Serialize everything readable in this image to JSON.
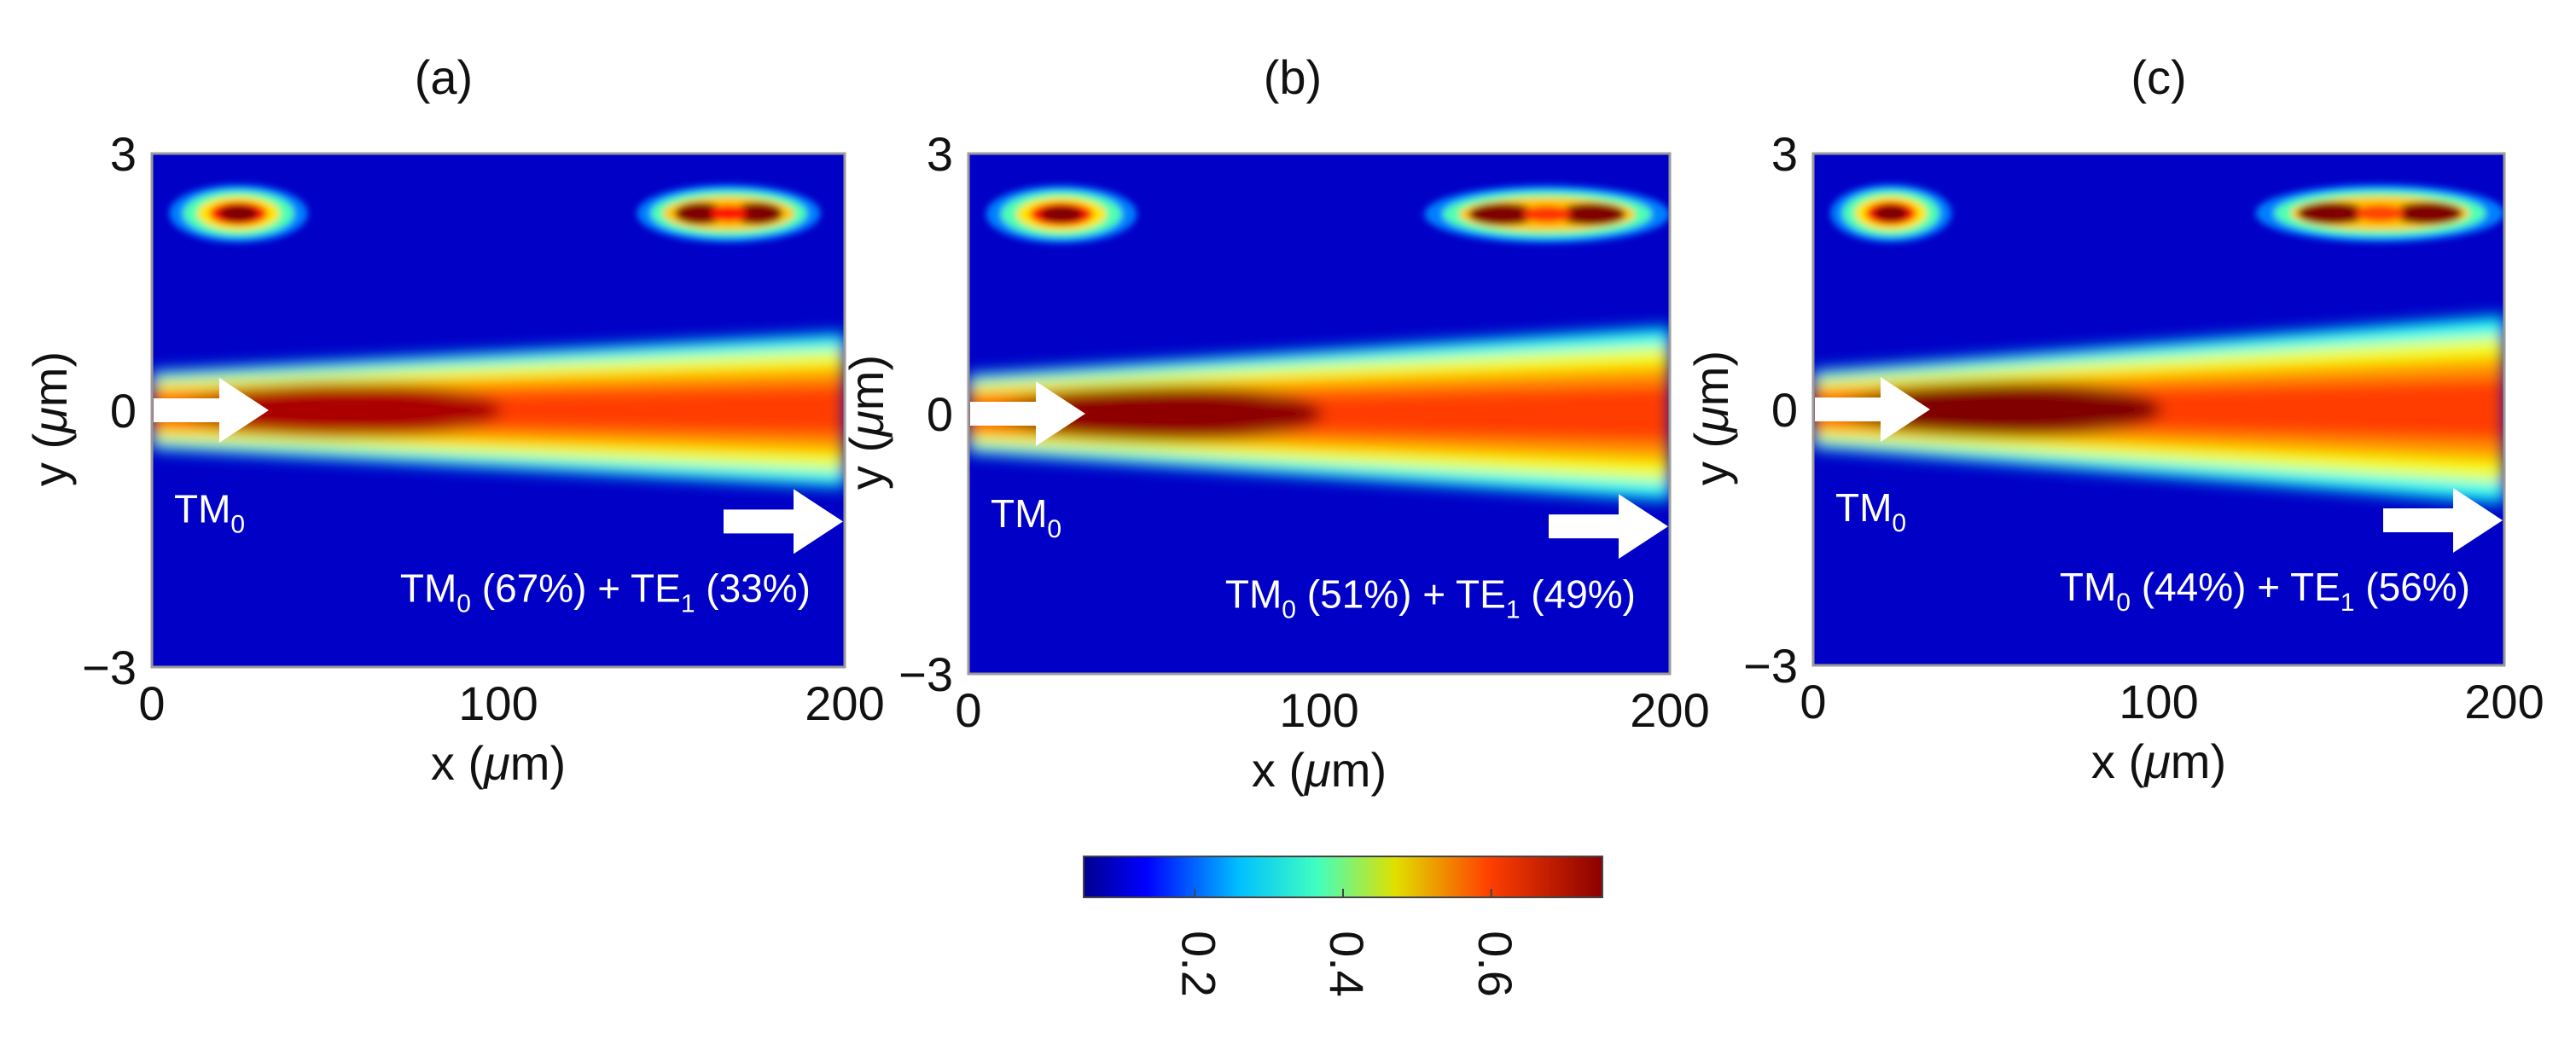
{
  "chart_data": [
    {
      "type": "heatmap",
      "panel_label": "(a)",
      "xlabel_prefix": "x (",
      "xlabel_unit": "μ",
      "xlabel_suffix": "m)",
      "ylabel_prefix": "y (",
      "ylabel_unit": "μ",
      "ylabel_suffix": "m)",
      "xlim": [
        0,
        200
      ],
      "ylim": [
        -3,
        3
      ],
      "x_ticks": [
        0,
        100,
        200
      ],
      "x_tick_labels": [
        "0",
        "100",
        "200"
      ],
      "y_ticks": [
        3,
        0,
        -3
      ],
      "y_tick_labels": [
        "3",
        "0",
        "−3"
      ],
      "input_label": {
        "base": "TM",
        "sub": "0"
      },
      "output_label": {
        "p1": "TM",
        "s1": "0",
        "p2": " (67%) + TE",
        "s2": "1",
        "p3": " (33%)"
      },
      "tm0_fraction": 0.67,
      "te1_fraction": 0.33,
      "input_mode_inset_x": [
        5,
        45
      ],
      "output_mode_inset_x": [
        140,
        193
      ],
      "beam_peak_intensity": 0.72,
      "beam_peak_x": 55,
      "beam_width_start_um": 0.45,
      "beam_width_end_um": 0.9
    },
    {
      "type": "heatmap",
      "panel_label": "(b)",
      "xlabel_prefix": "x (",
      "xlabel_unit": "μ",
      "xlabel_suffix": "m)",
      "ylabel_prefix": "y (",
      "ylabel_unit": "μ",
      "ylabel_suffix": "m)",
      "xlim": [
        0,
        200
      ],
      "ylim": [
        -3,
        3
      ],
      "x_ticks": [
        0,
        100,
        200
      ],
      "x_tick_labels": [
        "0",
        "100",
        "200"
      ],
      "y_ticks": [
        3,
        0,
        -3
      ],
      "y_tick_labels": [
        "3",
        "0",
        "−3"
      ],
      "input_label": {
        "base": "TM",
        "sub": "0"
      },
      "output_label": {
        "p1": "TM",
        "s1": "0",
        "p2": " (51%) + TE",
        "s2": "1",
        "p3": " (49%)"
      },
      "tm0_fraction": 0.51,
      "te1_fraction": 0.49,
      "input_mode_inset_x": [
        5,
        48
      ],
      "output_mode_inset_x": [
        130,
        200
      ],
      "beam_peak_intensity": 0.74,
      "beam_peak_x": 55,
      "beam_width_start_um": 0.45,
      "beam_width_end_um": 1.0
    },
    {
      "type": "heatmap",
      "panel_label": "(c)",
      "xlabel_prefix": "x (",
      "xlabel_unit": "μ",
      "xlabel_suffix": "m)",
      "ylabel_prefix": "y (",
      "ylabel_unit": "μ",
      "ylabel_suffix": "m)",
      "xlim": [
        0,
        200
      ],
      "ylim": [
        -3,
        3
      ],
      "x_ticks": [
        0,
        100,
        200
      ],
      "x_tick_labels": [
        "0",
        "100",
        "200"
      ],
      "y_ticks": [
        3,
        0,
        -3
      ],
      "y_tick_labels": [
        "3",
        "0",
        "−3"
      ],
      "input_label": {
        "base": "TM",
        "sub": "0"
      },
      "output_label": {
        "p1": "TM",
        "s1": "0",
        "p2": " (44%) + TE",
        "s2": "1",
        "p3": " (56%)"
      },
      "tm0_fraction": 0.44,
      "te1_fraction": 0.56,
      "input_mode_inset_x": [
        5,
        40
      ],
      "output_mode_inset_x": [
        128,
        200
      ],
      "beam_peak_intensity": 0.75,
      "beam_peak_x": 55,
      "beam_width_start_um": 0.45,
      "beam_width_end_um": 1.1
    }
  ],
  "colorbar": {
    "min": 0.05,
    "max": 0.75,
    "ticks": [
      0.2,
      0.4,
      0.6
    ],
    "tick_labels": [
      "0.2",
      "0.4",
      "0.6"
    ],
    "colormap": "jet"
  }
}
